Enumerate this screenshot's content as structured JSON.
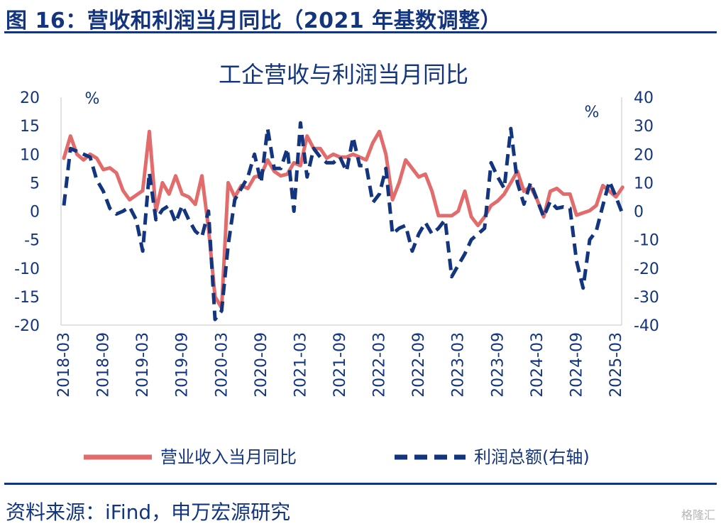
{
  "figure": {
    "title": "图 16：营收和利润当月同比（2021 年基数调整）",
    "source": "资料来源：iFind，申万宏源研究",
    "watermark": "格隆汇"
  },
  "chart_data": {
    "type": "line",
    "title": "工企营收与利润当月同比",
    "left_axis_unit": "%",
    "right_axis_unit": "%",
    "ylim_left": [
      -20,
      20
    ],
    "ylim_right": [
      -40,
      40
    ],
    "yticks_left": [
      "20",
      "15",
      "10",
      "5",
      "0",
      "-5",
      "-10",
      "-15",
      "-20"
    ],
    "yticks_right": [
      "40",
      "30",
      "20",
      "10",
      "0",
      "-10",
      "-20",
      "-30",
      "-40"
    ],
    "x_tick_labels": [
      "2018-03",
      "2018-09",
      "2019-03",
      "2019-09",
      "2020-03",
      "2020-09",
      "2021-03",
      "2021-09",
      "2022-03",
      "2022-09",
      "2023-03",
      "2023-09",
      "2024-03",
      "2024-09",
      "2025-03"
    ],
    "x_start": "2018-03",
    "grid": false,
    "legend_position": "bottom",
    "colors": {
      "revenue": "#e26b6b",
      "profit": "#13357f",
      "text": "#13357f",
      "axis": "#d9d9d9"
    },
    "series": [
      {
        "name": "营业收入当月同比",
        "axis": "left",
        "style": "solid",
        "values": [
          9.3,
          13.2,
          10.0,
          9.0,
          10.0,
          9.3,
          7.3,
          7.6,
          6.7,
          3.6,
          2.0,
          2.8,
          3.6,
          14.0,
          0.0,
          5.0,
          3.0,
          6.2,
          3.0,
          2.5,
          1.2,
          6.2,
          -3.0,
          -15.0,
          -17.0,
          5.0,
          2.5,
          4.5,
          4.0,
          6.0,
          6.3,
          9.0,
          7.0,
          6.2,
          6.5,
          8.5,
          8.0,
          13.2,
          11.0,
          11.0,
          9.3,
          10.0,
          9.5,
          9.5,
          10.0,
          9.5,
          9.0,
          12.0,
          14.0,
          10.0,
          2.0,
          5.0,
          9.0,
          7.5,
          6.0,
          6.5,
          3.5,
          -0.8,
          -0.8,
          -0.8,
          0.0,
          3.5,
          -1.0,
          -2.5,
          -1.0,
          1.0,
          1.8,
          3.0,
          5.0,
          7.0,
          3.5,
          4.3,
          2.0,
          -1.0,
          3.5,
          4.0,
          3.0,
          3.0,
          -0.7,
          -0.3,
          0.1,
          1.0,
          4.5,
          3.5,
          2.5,
          4.2
        ]
      },
      {
        "name": "利润总额(右轴)",
        "axis": "right",
        "style": "dashed",
        "values": [
          2.0,
          22.0,
          21.0,
          20.0,
          19.0,
          11.0,
          7.0,
          1.0,
          -1.0,
          0.0,
          1.5,
          -3.0,
          -14.0,
          13.5,
          -3.0,
          0.5,
          2.0,
          -4.0,
          2.0,
          -3.0,
          -7.0,
          -9.0,
          0.0,
          -38.0,
          -35.0,
          -12.0,
          4.0,
          8.0,
          12.0,
          20.0,
          10.0,
          29.0,
          15.0,
          15.0,
          22.0,
          0.0,
          31.0,
          12.0,
          22.0,
          19.0,
          17.0,
          17.0,
          19.0,
          14.0,
          26.0,
          16.0,
          16.0,
          3.0,
          6.0,
          15.0,
          -8.0,
          -6.0,
          -5.0,
          -14.0,
          -8.0,
          -4.0,
          -8.0,
          -6.0,
          -3.0,
          -23.0,
          -19.0,
          -15.0,
          -10.0,
          -8.0,
          -6.0,
          17.0,
          12.0,
          8.0,
          29.0,
          10.0,
          2.5,
          10.0,
          4.0,
          -2.0,
          3.5,
          1.0,
          1.5,
          1.0,
          -17.5,
          -27.0,
          -10.0,
          -7.0,
          2.0,
          10.5,
          5.0,
          -1.0
        ]
      }
    ]
  }
}
